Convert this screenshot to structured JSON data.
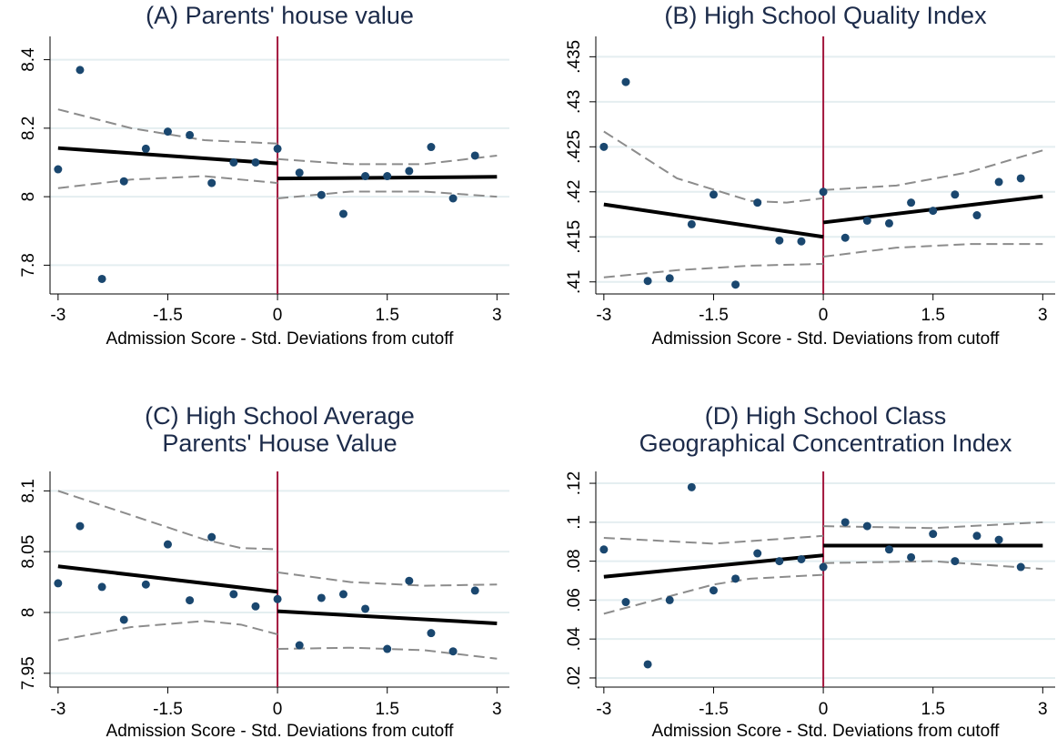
{
  "chart_data": [
    {
      "type": "scatter",
      "title": [
        "(A) Parents' house value"
      ],
      "xlabel": "Admission Score - Std. Deviations from cutoff",
      "xlim": [
        -3.11,
        3.17
      ],
      "xticks": [
        -3,
        -1.5,
        0,
        1.5,
        3
      ],
      "ylim": [
        7.716,
        8.468
      ],
      "yticks": [
        7.8,
        8,
        8.2,
        8.4
      ],
      "grid": true,
      "cutoff": 0,
      "x": [
        -3,
        -2.7,
        -2.4,
        -2.1,
        -1.8,
        -1.5,
        -1.2,
        -0.9,
        -0.6,
        -0.3,
        0,
        0.3,
        0.6,
        0.9,
        1.2,
        1.5,
        1.8,
        2.1,
        2.4,
        2.7
      ],
      "values": [
        8.08,
        8.37,
        7.76,
        8.045,
        8.14,
        8.19,
        8.18,
        8.04,
        8.1,
        8.1,
        8.14,
        8.07,
        8.005,
        7.95,
        8.06,
        8.06,
        8.075,
        8.145,
        7.995,
        8.12
      ],
      "color": "#1a476f",
      "fit": [
        {
          "x": [
            -3,
            0
          ],
          "values": [
            8.142,
            8.097
          ]
        },
        {
          "x": [
            0,
            3
          ],
          "values": [
            8.053,
            8.058
          ]
        }
      ],
      "ci_upper": [
        {
          "x": [
            -3,
            -2,
            -1,
            0
          ],
          "values": [
            8.255,
            8.2,
            8.165,
            8.155
          ]
        },
        {
          "x": [
            0,
            1,
            2,
            3
          ],
          "values": [
            8.11,
            8.095,
            8.095,
            8.12
          ]
        }
      ],
      "ci_lower": [
        {
          "x": [
            -3,
            -2,
            -1,
            0
          ],
          "values": [
            8.025,
            8.05,
            8.06,
            8.04
          ]
        },
        {
          "x": [
            0,
            1,
            2,
            3
          ],
          "values": [
            7.995,
            8.015,
            8.015,
            8.0
          ]
        }
      ],
      "fit_color": "#000000",
      "ci_color": "#8c8c8c",
      "cutoff_color": "#a3163c"
    },
    {
      "type": "scatter",
      "title": [
        "(B) High School Quality Index"
      ],
      "xlabel": "Admission Score - Std. Deviations from cutoff",
      "xlim": [
        -3.11,
        3.17
      ],
      "xticks": [
        -3,
        -1.5,
        0,
        1.5,
        3
      ],
      "ylim": [
        0.40866,
        0.43726
      ],
      "yticks": [
        {
          "value": 0.41,
          "label": ".41"
        },
        {
          "value": 0.415,
          "label": ".415"
        },
        {
          "value": 0.42,
          "label": ".42"
        },
        {
          "value": 0.425,
          "label": ".425"
        },
        {
          "value": 0.43,
          "label": ".43"
        },
        {
          "value": 0.435,
          "label": ".435"
        }
      ],
      "grid": true,
      "cutoff": 0,
      "x": [
        -3,
        -2.7,
        -2.4,
        -2.1,
        -1.8,
        -1.5,
        -1.2,
        -0.9,
        -0.6,
        -0.3,
        0,
        0.3,
        0.6,
        0.9,
        1.2,
        1.5,
        1.8,
        2.1,
        2.4,
        2.7
      ],
      "values": [
        0.425,
        0.4322,
        0.4101,
        0.4104,
        0.4164,
        0.4197,
        0.4097,
        0.4188,
        0.4146,
        0.4145,
        0.42,
        0.4149,
        0.4168,
        0.4165,
        0.4188,
        0.4179,
        0.4197,
        0.4174,
        0.4211,
        0.4215
      ],
      "color": "#1a476f",
      "fit": [
        {
          "x": [
            -3,
            0
          ],
          "values": [
            0.4186,
            0.415
          ]
        },
        {
          "x": [
            0,
            3
          ],
          "values": [
            0.4166,
            0.4195
          ]
        }
      ],
      "ci_upper": [
        {
          "x": [
            -3,
            -2,
            -1,
            -0.5,
            0
          ],
          "values": [
            0.4267,
            0.4215,
            0.419,
            0.4188,
            0.4193
          ]
        },
        {
          "x": [
            0,
            1,
            2,
            3
          ],
          "values": [
            0.4202,
            0.4207,
            0.4222,
            0.4246
          ]
        }
      ],
      "ci_lower": [
        {
          "x": [
            -3,
            -2,
            -1,
            0
          ],
          "values": [
            0.4105,
            0.4113,
            0.4118,
            0.412
          ]
        },
        {
          "x": [
            0,
            1,
            2,
            3
          ],
          "values": [
            0.4128,
            0.4138,
            0.4142,
            0.4142
          ]
        }
      ],
      "fit_color": "#000000",
      "ci_color": "#8c8c8c",
      "cutoff_color": "#a3163c"
    },
    {
      "type": "scatter",
      "title": [
        "(C) High School Average",
        "Parents' House Value"
      ],
      "xlabel": "Admission Score - Std. Deviations from cutoff",
      "xlim": [
        -3.11,
        3.17
      ],
      "xticks": [
        -3,
        -1.5,
        0,
        1.5,
        3
      ],
      "ylim": [
        7.9386,
        8.116
      ],
      "yticks": [
        7.95,
        8,
        8.05,
        8.1
      ],
      "grid": true,
      "cutoff": 0,
      "x": [
        -3,
        -2.7,
        -2.4,
        -2.1,
        -1.8,
        -1.5,
        -1.2,
        -0.9,
        -0.6,
        -0.3,
        0,
        0.3,
        0.6,
        0.9,
        1.2,
        1.5,
        1.8,
        2.1,
        2.4,
        2.7
      ],
      "values": [
        8.024,
        8.071,
        8.021,
        7.994,
        8.023,
        8.056,
        8.01,
        8.062,
        8.015,
        8.005,
        8.011,
        7.973,
        8.012,
        8.015,
        8.003,
        7.97,
        8.026,
        7.983,
        7.968,
        8.018
      ],
      "color": "#1a476f",
      "fit": [
        {
          "x": [
            -3,
            0
          ],
          "values": [
            8.038,
            8.017
          ]
        },
        {
          "x": [
            0,
            3
          ],
          "values": [
            8.001,
            7.991
          ]
        }
      ],
      "ci_upper": [
        {
          "x": [
            -3,
            -2,
            -1,
            -0.5,
            0
          ],
          "values": [
            8.1,
            8.08,
            8.06,
            8.053,
            8.052
          ]
        },
        {
          "x": [
            0,
            1,
            2,
            3
          ],
          "values": [
            8.033,
            8.025,
            8.022,
            8.023
          ]
        }
      ],
      "ci_lower": [
        {
          "x": [
            -3,
            -2,
            -1,
            -0.5,
            0
          ],
          "values": [
            7.977,
            7.988,
            7.993,
            7.99,
            7.982
          ]
        },
        {
          "x": [
            0,
            1,
            2,
            3
          ],
          "values": [
            7.97,
            7.971,
            7.969,
            7.962
          ]
        }
      ],
      "fit_color": "#000000",
      "ci_color": "#8c8c8c",
      "cutoff_color": "#a3163c"
    },
    {
      "type": "scatter",
      "title": [
        "(D) High School Class",
        "Geographical Concentration Index"
      ],
      "xlabel": "Admission Score - Std. Deviations from cutoff",
      "xlim": [
        -3.11,
        3.17
      ],
      "xticks": [
        -3,
        -1.5,
        0,
        1.5,
        3
      ],
      "ylim": [
        0.0153,
        0.1261
      ],
      "yticks": [
        {
          "value": 0.02,
          "label": ".02"
        },
        {
          "value": 0.04,
          "label": ".04"
        },
        {
          "value": 0.06,
          "label": ".06"
        },
        {
          "value": 0.08,
          "label": ".08"
        },
        {
          "value": 0.1,
          "label": ".1"
        },
        {
          "value": 0.12,
          "label": ".12"
        }
      ],
      "grid": true,
      "cutoff": 0,
      "x": [
        -3,
        -2.7,
        -2.4,
        -2.1,
        -1.8,
        -1.5,
        -1.2,
        -0.9,
        -0.6,
        -0.3,
        0,
        0.3,
        0.6,
        0.9,
        1.2,
        1.5,
        1.8,
        2.1,
        2.4,
        2.7
      ],
      "values": [
        0.086,
        0.059,
        0.027,
        0.06,
        0.118,
        0.065,
        0.071,
        0.084,
        0.08,
        0.081,
        0.077,
        0.1,
        0.098,
        0.086,
        0.082,
        0.094,
        0.08,
        0.093,
        0.091,
        0.077
      ],
      "color": "#1a476f",
      "fit": [
        {
          "x": [
            -3,
            0
          ],
          "values": [
            0.072,
            0.083
          ]
        },
        {
          "x": [
            0,
            3
          ],
          "values": [
            0.088,
            0.088
          ]
        }
      ],
      "ci_upper": [
        {
          "x": [
            -3,
            -1.5,
            0
          ],
          "values": [
            0.092,
            0.089,
            0.093
          ]
        },
        {
          "x": [
            0,
            1.5,
            3
          ],
          "values": [
            0.098,
            0.097,
            0.1
          ]
        }
      ],
      "ci_lower": [
        {
          "x": [
            -3,
            -1.5,
            -1,
            0
          ],
          "values": [
            0.053,
            0.068,
            0.071,
            0.073
          ]
        },
        {
          "x": [
            0,
            1.5,
            3
          ],
          "values": [
            0.079,
            0.08,
            0.076
          ]
        }
      ],
      "fit_color": "#000000",
      "ci_color": "#8c8c8c",
      "cutoff_color": "#a3163c"
    }
  ]
}
